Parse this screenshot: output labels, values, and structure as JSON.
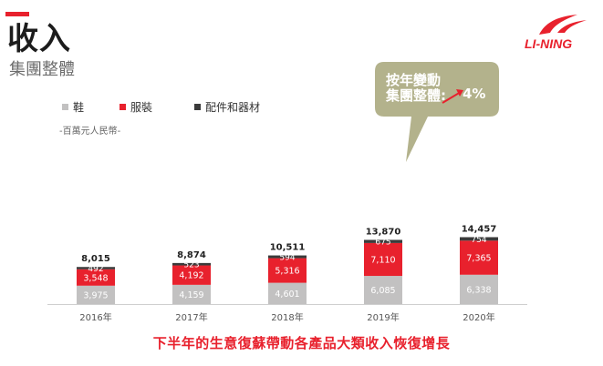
{
  "header": {
    "title": "收入",
    "subtitle": "集團整體"
  },
  "logo": {
    "text": "LI-NING"
  },
  "colors": {
    "accent": "#e8212d",
    "footwear": "#c2c1c1",
    "apparel": "#e8212d",
    "equipment": "#3a3a3a",
    "callout": "#b3b28c"
  },
  "legend": {
    "footwear": "鞋",
    "apparel": "服裝",
    "equipment": "配件和器材"
  },
  "unit_note": "-百萬元人民幣-",
  "callout": {
    "line1": "按年變動",
    "line2": "集團整體:",
    "value": "4%"
  },
  "footer": "下半年的生意復蘇帶動各產品大類收入恢復增長",
  "chart_data": {
    "type": "bar",
    "stacked": true,
    "title": "收入 集團整體",
    "ylabel": "百萬元人民幣",
    "categories": [
      "2016年",
      "2017年",
      "2018年",
      "2019年",
      "2020年"
    ],
    "series": [
      {
        "name": "鞋",
        "values": [
          3975,
          4159,
          4601,
          6085,
          6338
        ],
        "labels": [
          "3,975",
          "4,159",
          "4,601",
          "6,085",
          "6,338"
        ]
      },
      {
        "name": "服裝",
        "values": [
          3548,
          4192,
          5316,
          7110,
          7365
        ],
        "labels": [
          "3,548",
          "4,192",
          "5,316",
          "7,110",
          "7,365"
        ]
      },
      {
        "name": "配件和器材",
        "values": [
          492,
          523,
          594,
          675,
          754
        ],
        "labels": [
          "492",
          "523",
          "594",
          "675",
          "754"
        ]
      }
    ],
    "totals": [
      8015,
      8874,
      10511,
      13870,
      14457
    ],
    "total_labels": [
      "8,015",
      "8,874",
      "10,511",
      "13,870",
      "14,457"
    ],
    "ylim": [
      0,
      16000
    ]
  }
}
